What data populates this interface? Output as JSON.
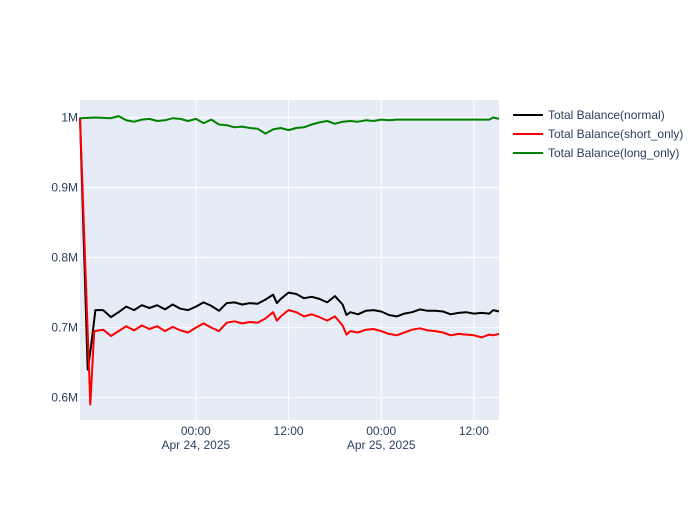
{
  "chart_data": {
    "type": "line",
    "title": "",
    "xlabel": "",
    "ylabel": "",
    "x_ticks": [
      {
        "x": "2025-04-24 00:00",
        "label": "00:00",
        "sublabel": "Apr 24, 2025"
      },
      {
        "x": "2025-04-24 12:00",
        "label": "12:00",
        "sublabel": ""
      },
      {
        "x": "2025-04-25 00:00",
        "label": "00:00",
        "sublabel": "Apr 25, 2025"
      },
      {
        "x": "2025-04-25 12:00",
        "label": "12:00",
        "sublabel": ""
      }
    ],
    "y_ticks": [
      {
        "y": 600000,
        "label": "0.6M"
      },
      {
        "y": 700000,
        "label": "0.7M"
      },
      {
        "y": 800000,
        "label": "0.8M"
      },
      {
        "y": 900000,
        "label": "0.9M"
      },
      {
        "y": 1000000,
        "label": "1M"
      }
    ],
    "xlim": [
      "2025-04-23 09:00",
      "2025-04-25 15:15"
    ],
    "ylim": [
      568000,
      1025000
    ],
    "grid": true,
    "legend_position": "top-right",
    "series": [
      {
        "name": "Total Balance(normal)",
        "color": "#000000",
        "points": [
          [
            "2025-04-23 09:00",
            1000000
          ],
          [
            "2025-04-23 10:00",
            640000
          ],
          [
            "2025-04-23 10:20",
            665000
          ],
          [
            "2025-04-23 11:00",
            725000
          ],
          [
            "2025-04-23 12:00",
            725000
          ],
          [
            "2025-04-23 13:00",
            715000
          ],
          [
            "2025-04-23 14:00",
            722000
          ],
          [
            "2025-04-23 15:00",
            730000
          ],
          [
            "2025-04-23 16:00",
            725000
          ],
          [
            "2025-04-23 17:00",
            732000
          ],
          [
            "2025-04-23 18:00",
            728000
          ],
          [
            "2025-04-23 19:00",
            732000
          ],
          [
            "2025-04-23 20:00",
            726000
          ],
          [
            "2025-04-23 21:00",
            733000
          ],
          [
            "2025-04-23 22:00",
            727000
          ],
          [
            "2025-04-23 23:00",
            725000
          ],
          [
            "2025-04-24 00:00",
            730000
          ],
          [
            "2025-04-24 01:00",
            736000
          ],
          [
            "2025-04-24 02:00",
            731000
          ],
          [
            "2025-04-24 03:00",
            724000
          ],
          [
            "2025-04-24 04:00",
            735000
          ],
          [
            "2025-04-24 05:00",
            736000
          ],
          [
            "2025-04-24 06:00",
            733000
          ],
          [
            "2025-04-24 07:00",
            735000
          ],
          [
            "2025-04-24 08:00",
            734000
          ],
          [
            "2025-04-24 09:00",
            740000
          ],
          [
            "2025-04-24 10:00",
            747000
          ],
          [
            "2025-04-24 10:30",
            735000
          ],
          [
            "2025-04-24 11:00",
            741000
          ],
          [
            "2025-04-24 12:00",
            750000
          ],
          [
            "2025-04-24 13:00",
            748000
          ],
          [
            "2025-04-24 14:00",
            742000
          ],
          [
            "2025-04-24 15:00",
            744000
          ],
          [
            "2025-04-24 16:00",
            741000
          ],
          [
            "2025-04-24 17:00",
            736000
          ],
          [
            "2025-04-24 18:00",
            745000
          ],
          [
            "2025-04-24 19:00",
            733000
          ],
          [
            "2025-04-24 19:30",
            718000
          ],
          [
            "2025-04-24 20:00",
            722000
          ],
          [
            "2025-04-24 21:00",
            719000
          ],
          [
            "2025-04-24 22:00",
            724000
          ],
          [
            "2025-04-24 23:00",
            725000
          ],
          [
            "2025-04-25 00:00",
            723000
          ],
          [
            "2025-04-25 01:00",
            718000
          ],
          [
            "2025-04-25 02:00",
            716000
          ],
          [
            "2025-04-25 03:00",
            720000
          ],
          [
            "2025-04-25 04:00",
            722000
          ],
          [
            "2025-04-25 05:00",
            726000
          ],
          [
            "2025-04-25 06:00",
            724000
          ],
          [
            "2025-04-25 07:00",
            724000
          ],
          [
            "2025-04-25 08:00",
            723000
          ],
          [
            "2025-04-25 09:00",
            719000
          ],
          [
            "2025-04-25 10:00",
            721000
          ],
          [
            "2025-04-25 11:00",
            722000
          ],
          [
            "2025-04-25 12:00",
            720000
          ],
          [
            "2025-04-25 13:00",
            721000
          ],
          [
            "2025-04-25 14:00",
            720000
          ],
          [
            "2025-04-25 14:30",
            725000
          ],
          [
            "2025-04-25 15:15",
            723000
          ]
        ]
      },
      {
        "name": "Total Balance(short_only)",
        "color": "#ff0000",
        "points": [
          [
            "2025-04-23 09:00",
            1000000
          ],
          [
            "2025-04-23 10:20",
            590000
          ],
          [
            "2025-04-23 10:50",
            695000
          ],
          [
            "2025-04-23 12:00",
            697000
          ],
          [
            "2025-04-23 13:00",
            688000
          ],
          [
            "2025-04-23 14:00",
            695000
          ],
          [
            "2025-04-23 15:00",
            702000
          ],
          [
            "2025-04-23 16:00",
            696000
          ],
          [
            "2025-04-23 17:00",
            703000
          ],
          [
            "2025-04-23 18:00",
            698000
          ],
          [
            "2025-04-23 19:00",
            702000
          ],
          [
            "2025-04-23 20:00",
            695000
          ],
          [
            "2025-04-23 21:00",
            701000
          ],
          [
            "2025-04-23 22:00",
            696000
          ],
          [
            "2025-04-23 23:00",
            693000
          ],
          [
            "2025-04-24 00:00",
            700000
          ],
          [
            "2025-04-24 01:00",
            706000
          ],
          [
            "2025-04-24 02:00",
            700000
          ],
          [
            "2025-04-24 03:00",
            695000
          ],
          [
            "2025-04-24 04:00",
            707000
          ],
          [
            "2025-04-24 05:00",
            709000
          ],
          [
            "2025-04-24 06:00",
            706000
          ],
          [
            "2025-04-24 07:00",
            708000
          ],
          [
            "2025-04-24 08:00",
            707000
          ],
          [
            "2025-04-24 09:00",
            713000
          ],
          [
            "2025-04-24 10:00",
            722000
          ],
          [
            "2025-04-24 10:30",
            710000
          ],
          [
            "2025-04-24 11:00",
            716000
          ],
          [
            "2025-04-24 12:00",
            725000
          ],
          [
            "2025-04-24 13:00",
            722000
          ],
          [
            "2025-04-24 14:00",
            716000
          ],
          [
            "2025-04-24 15:00",
            719000
          ],
          [
            "2025-04-24 16:00",
            715000
          ],
          [
            "2025-04-24 17:00",
            710000
          ],
          [
            "2025-04-24 18:00",
            716000
          ],
          [
            "2025-04-24 19:00",
            703000
          ],
          [
            "2025-04-24 19:30",
            690000
          ],
          [
            "2025-04-24 20:00",
            695000
          ],
          [
            "2025-04-24 21:00",
            693000
          ],
          [
            "2025-04-24 22:00",
            697000
          ],
          [
            "2025-04-24 23:00",
            698000
          ],
          [
            "2025-04-25 00:00",
            695000
          ],
          [
            "2025-04-25 01:00",
            691000
          ],
          [
            "2025-04-25 02:00",
            689000
          ],
          [
            "2025-04-25 03:00",
            693000
          ],
          [
            "2025-04-25 04:00",
            697000
          ],
          [
            "2025-04-25 05:00",
            699000
          ],
          [
            "2025-04-25 06:00",
            696000
          ],
          [
            "2025-04-25 07:00",
            695000
          ],
          [
            "2025-04-25 08:00",
            693000
          ],
          [
            "2025-04-25 09:00",
            689000
          ],
          [
            "2025-04-25 10:00",
            691000
          ],
          [
            "2025-04-25 11:00",
            690000
          ],
          [
            "2025-04-25 12:00",
            689000
          ],
          [
            "2025-04-25 13:00",
            686000
          ],
          [
            "2025-04-25 14:00",
            690000
          ],
          [
            "2025-04-25 14:30",
            689000
          ],
          [
            "2025-04-25 15:15",
            691000
          ]
        ]
      },
      {
        "name": "Total Balance(long_only)",
        "color": "#008000",
        "points": [
          [
            "2025-04-23 09:00",
            999000
          ],
          [
            "2025-04-23 11:00",
            1000000
          ],
          [
            "2025-04-23 13:00",
            999000
          ],
          [
            "2025-04-23 14:00",
            1002000
          ],
          [
            "2025-04-23 15:00",
            996000
          ],
          [
            "2025-04-23 16:00",
            994000
          ],
          [
            "2025-04-23 17:00",
            997000
          ],
          [
            "2025-04-23 18:00",
            998000
          ],
          [
            "2025-04-23 19:00",
            995000
          ],
          [
            "2025-04-23 20:00",
            996000
          ],
          [
            "2025-04-23 21:00",
            999000
          ],
          [
            "2025-04-23 22:00",
            998000
          ],
          [
            "2025-04-23 23:00",
            995000
          ],
          [
            "2025-04-24 00:00",
            998000
          ],
          [
            "2025-04-24 01:00",
            992000
          ],
          [
            "2025-04-24 02:00",
            997000
          ],
          [
            "2025-04-24 03:00",
            990000
          ],
          [
            "2025-04-24 04:00",
            989000
          ],
          [
            "2025-04-24 05:00",
            986000
          ],
          [
            "2025-04-24 06:00",
            987000
          ],
          [
            "2025-04-24 07:00",
            985000
          ],
          [
            "2025-04-24 08:00",
            984000
          ],
          [
            "2025-04-24 09:00",
            977000
          ],
          [
            "2025-04-24 10:00",
            983000
          ],
          [
            "2025-04-24 11:00",
            985000
          ],
          [
            "2025-04-24 12:00",
            982000
          ],
          [
            "2025-04-24 13:00",
            985000
          ],
          [
            "2025-04-24 14:00",
            986000
          ],
          [
            "2025-04-24 15:00",
            990000
          ],
          [
            "2025-04-24 16:00",
            993000
          ],
          [
            "2025-04-24 17:00",
            995000
          ],
          [
            "2025-04-24 18:00",
            991000
          ],
          [
            "2025-04-24 19:00",
            994000
          ],
          [
            "2025-04-24 20:00",
            995000
          ],
          [
            "2025-04-24 21:00",
            994000
          ],
          [
            "2025-04-24 22:00",
            996000
          ],
          [
            "2025-04-24 23:00",
            995000
          ],
          [
            "2025-04-25 00:00",
            997000
          ],
          [
            "2025-04-25 01:00",
            996000
          ],
          [
            "2025-04-25 02:00",
            997000
          ],
          [
            "2025-04-25 04:00",
            997000
          ],
          [
            "2025-04-25 08:00",
            997000
          ],
          [
            "2025-04-25 12:00",
            997000
          ],
          [
            "2025-04-25 14:00",
            997000
          ],
          [
            "2025-04-25 14:30",
            1000000
          ],
          [
            "2025-04-25 15:15",
            998000
          ]
        ]
      }
    ]
  }
}
